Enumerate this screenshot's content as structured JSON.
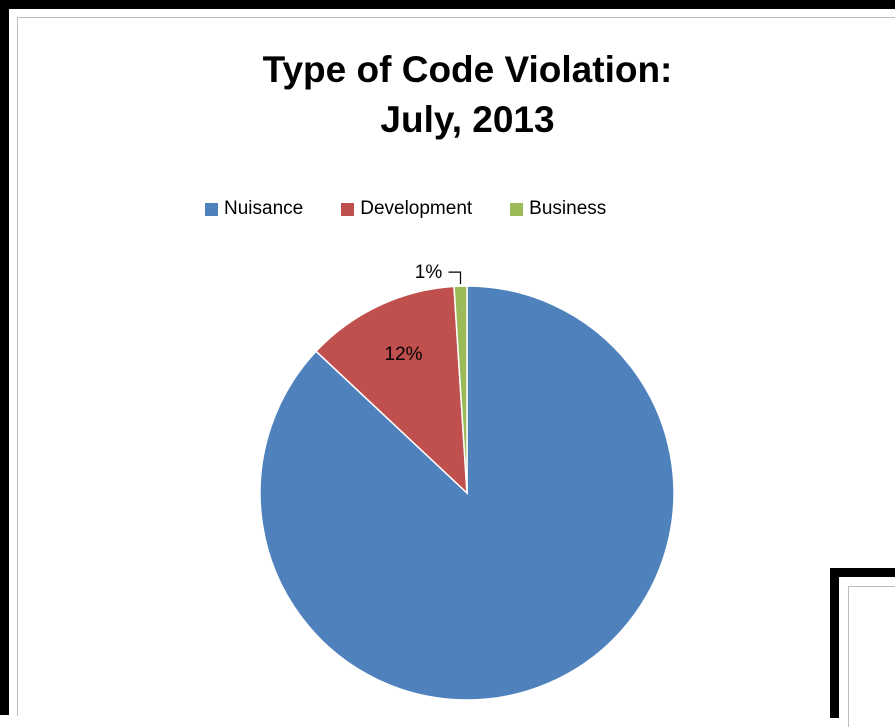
{
  "chart_data": {
    "type": "pie",
    "title": "Type of Code Violation:",
    "subtitle": "July, 2013",
    "legend_position": "top",
    "slices": [
      {
        "name": "Nuisance",
        "value": 87,
        "label": "87%",
        "color": "#4F81BD"
      },
      {
        "name": "Development",
        "value": 12,
        "label": "12%",
        "color": "#C0504D"
      },
      {
        "name": "Business",
        "value": 1,
        "label": "1%",
        "color": "#9BBB59"
      }
    ]
  }
}
